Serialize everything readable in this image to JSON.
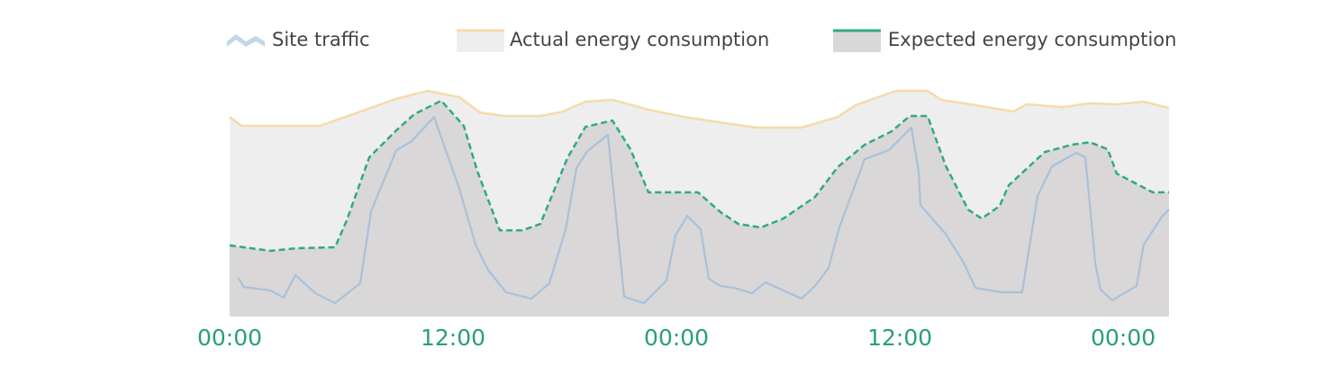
{
  "chart_data": {
    "type": "area",
    "xlim": [
      0,
      50.46
    ],
    "ylim": [
      0,
      100
    ],
    "xticks": [
      {
        "value": 0,
        "label": "00:00"
      },
      {
        "value": 12,
        "label": "12:00"
      },
      {
        "value": 24,
        "label": "00:00"
      },
      {
        "value": 36,
        "label": "12:00"
      },
      {
        "value": 48,
        "label": "00:00"
      }
    ],
    "series": [
      {
        "name": "Site traffic",
        "color": "#a9c1da",
        "fill": null,
        "dashed": false,
        "x": [
          0.48,
          0.73,
          2.18,
          2.9,
          3.53,
          4.6,
          5.66,
          7.01,
          7.6,
          8.95,
          9.77,
          10.98,
          12.34,
          13.21,
          13.88,
          14.85,
          16.21,
          17.17,
          18.05,
          18.63,
          19.21,
          20.32,
          21.19,
          22.25,
          23.46,
          23.95,
          24.58,
          25.3,
          25.74,
          26.37,
          27.09,
          28.06,
          28.79,
          30.72,
          31.45,
          32.17,
          32.75,
          34.11,
          35.41,
          36.62,
          37.01,
          37.11,
          38.46,
          39.43,
          40.06,
          41.46,
          42.57,
          43.4,
          44.17,
          45.48,
          45.96,
          46.3,
          46.49,
          46.78,
          47.41,
          48.72,
          49.1,
          50.08,
          50.46
        ],
        "values": [
          16.4,
          12.6,
          11.1,
          8.0,
          17.6,
          9.9,
          5.7,
          14.1,
          44.7,
          70.6,
          74.4,
          84.7,
          54.2,
          30.5,
          19.8,
          10.3,
          7.6,
          14.1,
          37.0,
          63.0,
          70.2,
          77.1,
          8.4,
          5.7,
          15.3,
          34.4,
          42.7,
          37.0,
          16.0,
          13.0,
          12.2,
          9.9,
          14.5,
          7.6,
          13.0,
          20.6,
          37.8,
          66.8,
          70.6,
          80.2,
          61.8,
          47.3,
          35.1,
          22.9,
          12.2,
          10.3,
          10.3,
          51.1,
          63.7,
          69.5,
          67.6,
          40.1,
          22.9,
          11.5,
          6.9,
          13.0,
          30.5,
          42.4,
          45.4
        ]
      },
      {
        "name": "Actual energy consumption",
        "color": "#f6dba8",
        "fill": "#eeeeee",
        "dashed": false,
        "x": [
          0,
          0.63,
          4.84,
          8.95,
          10.64,
          12.34,
          13.45,
          14.76,
          16.69,
          17.9,
          19.11,
          20.56,
          22.5,
          24.43,
          26.37,
          28.3,
          30.72,
          32.66,
          33.62,
          35.8,
          37.49,
          38.22,
          40.4,
          42.09,
          42.82,
          44.75,
          46.2,
          47.65,
          49.1,
          50.46
        ],
        "values": [
          84.7,
          80.9,
          80.9,
          92.4,
          95.8,
          93.1,
          86.6,
          85.1,
          85.1,
          87.0,
          91.2,
          92.0,
          87.8,
          84.7,
          82.4,
          80.2,
          80.2,
          84.7,
          89.7,
          95.8,
          95.8,
          92.0,
          89.3,
          87.0,
          90.1,
          88.9,
          90.5,
          90.1,
          91.2,
          88.5
        ]
      },
      {
        "name": "Expected energy consumption",
        "color": "#2faa85",
        "fill": "#d9d7d8",
        "dashed": true,
        "x": [
          0,
          2.18,
          3.63,
          5.66,
          6.29,
          7.5,
          8.95,
          9.92,
          11.37,
          12.58,
          13.3,
          14.51,
          15.72,
          16.69,
          18.14,
          19.11,
          20.56,
          21.53,
          22.5,
          25.16,
          26.37,
          27.33,
          28.54,
          29.75,
          31.45,
          32.66,
          34.11,
          35.56,
          36.53,
          37.49,
          38.46,
          39.67,
          40.4,
          41.36,
          41.85,
          43.78,
          45.23,
          46.2,
          47.17,
          47.65,
          49.59,
          50.46
        ],
        "values": [
          30.2,
          27.9,
          29.0,
          29.4,
          40.8,
          67.6,
          79.0,
          85.9,
          91.6,
          80.9,
          61.8,
          36.6,
          36.6,
          39.3,
          67.2,
          80.5,
          83.2,
          71.0,
          52.7,
          52.7,
          44.3,
          39.3,
          37.8,
          41.6,
          50.8,
          63.4,
          72.9,
          78.6,
          85.1,
          85.1,
          64.1,
          45.4,
          41.6,
          46.9,
          55.7,
          69.8,
          72.9,
          74.0,
          71.0,
          60.7,
          52.7,
          52.7
        ]
      }
    ]
  }
}
